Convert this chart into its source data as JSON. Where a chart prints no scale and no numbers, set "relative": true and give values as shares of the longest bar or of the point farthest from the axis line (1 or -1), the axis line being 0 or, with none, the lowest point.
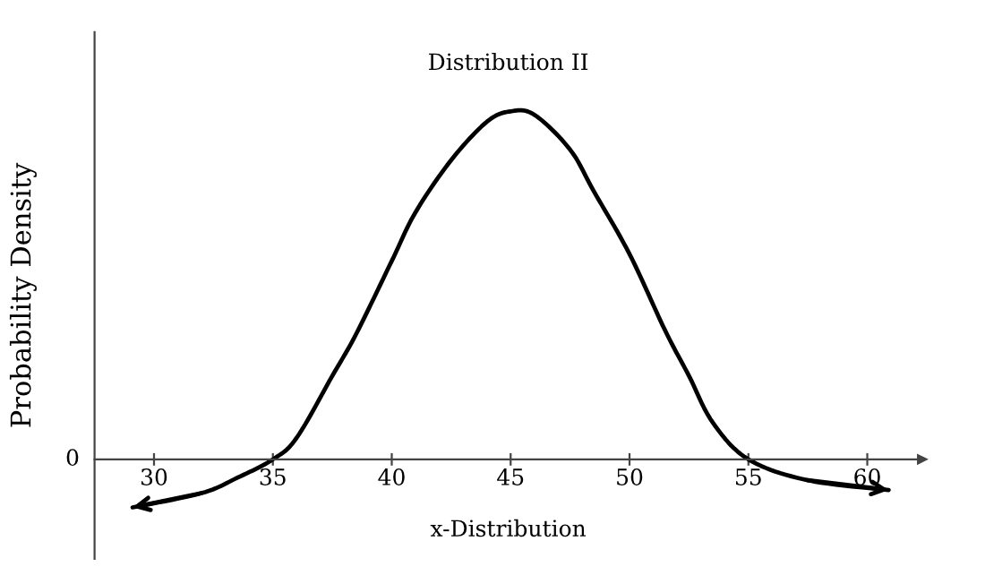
{
  "chart_data": {
    "type": "line",
    "title": "Distribution II",
    "xlabel": "x-Distribution",
    "ylabel": "Probability Density",
    "relative": true,
    "xlim": [
      27.5,
      62.3
    ],
    "xticks": [
      30,
      35,
      40,
      45,
      50,
      55,
      60
    ],
    "annotations": [
      "0"
    ],
    "grid": false,
    "marker": "none",
    "line_style": "solid",
    "series": [
      {
        "color": "#000000",
        "x": [
          29.1,
          32,
          33.5,
          35,
          36,
          37.5,
          38.5,
          40,
          41,
          42.5,
          44,
          45,
          46,
          47.5,
          48.5,
          50,
          51.5,
          52.5,
          53.5,
          55,
          57.5,
          60.9
        ],
        "values": [
          -0.138,
          -0.097,
          -0.053,
          0,
          0.062,
          0.24,
          0.36,
          0.57,
          0.71,
          0.86,
          0.97,
          1,
          0.99,
          0.89,
          0.77,
          0.59,
          0.37,
          0.24,
          0.106,
          0,
          -0.06,
          -0.088
        ]
      }
    ]
  }
}
